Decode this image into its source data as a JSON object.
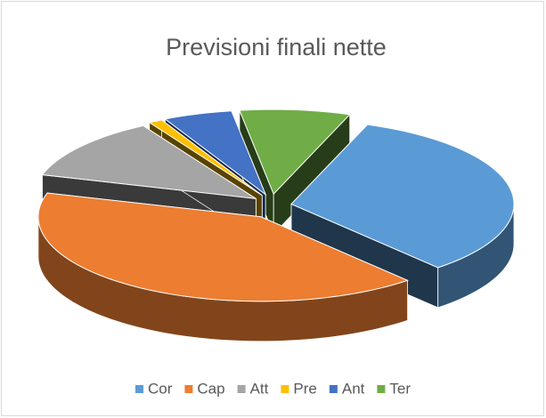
{
  "chart_data": {
    "type": "pie",
    "title": "Previsioni finali nette",
    "categories": [
      "Cor",
      "Cap",
      "Att",
      "Pre",
      "Ant",
      "Ter"
    ],
    "values": [
      33,
      41,
      12,
      1,
      5,
      8
    ],
    "colors": [
      "#5b9bd5",
      "#ed7d31",
      "#a5a5a5",
      "#ffc000",
      "#4472c4",
      "#70ad47"
    ]
  }
}
